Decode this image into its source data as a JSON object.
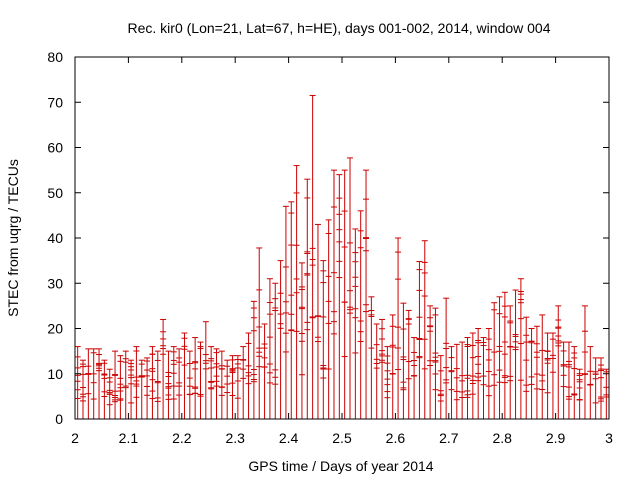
{
  "colors": {
    "series": "#cc0000",
    "axis": "#000000",
    "background": "#ffffff"
  },
  "chart_data": {
    "type": "errorbar",
    "title": "Rec. kir0 (Lon=21, Lat=67, h=HE), days 001-002, 2014, window 004",
    "xlabel": "GPS time / Days of year 2014",
    "ylabel": "STEC from uqrg / TECUs",
    "xlim": [
      2.0,
      3.0
    ],
    "ylim": [
      0,
      80
    ],
    "xticks": [
      2.0,
      2.1,
      2.2,
      2.3,
      2.4,
      2.5,
      2.6,
      2.7,
      2.8,
      2.9,
      3.0
    ],
    "xtick_labels": [
      "2",
      "2.1",
      "2.2",
      "2.3",
      "2.4",
      "2.5",
      "2.6",
      "2.7",
      "2.8",
      "2.9",
      "3"
    ],
    "yticks": [
      0,
      10,
      20,
      30,
      40,
      50,
      60,
      70,
      80
    ],
    "ytick_labels": [
      "0",
      "10",
      "20",
      "30",
      "40",
      "50",
      "60",
      "70",
      "80"
    ],
    "grid": false,
    "legend": "none",
    "series": [
      {
        "name": "STEC",
        "description": "Each vertical bar spans from 0 to the epoch's maximum STEC; horizontal ticks mark individual satellite STEC values.",
        "x": [
          2.005,
          2.015,
          2.025,
          2.035,
          2.045,
          2.055,
          2.065,
          2.075,
          2.085,
          2.095,
          2.105,
          2.115,
          2.125,
          2.135,
          2.145,
          2.155,
          2.165,
          2.175,
          2.185,
          2.195,
          2.205,
          2.215,
          2.225,
          2.235,
          2.245,
          2.255,
          2.265,
          2.275,
          2.285,
          2.295,
          2.305,
          2.315,
          2.325,
          2.335,
          2.345,
          2.355,
          2.365,
          2.375,
          2.385,
          2.395,
          2.405,
          2.415,
          2.425,
          2.435,
          2.445,
          2.455,
          2.465,
          2.475,
          2.485,
          2.495,
          2.505,
          2.515,
          2.525,
          2.535,
          2.545,
          2.555,
          2.565,
          2.575,
          2.585,
          2.595,
          2.605,
          2.615,
          2.625,
          2.635,
          2.645,
          2.655,
          2.665,
          2.675,
          2.685,
          2.695,
          2.705,
          2.715,
          2.725,
          2.735,
          2.745,
          2.755,
          2.765,
          2.775,
          2.785,
          2.795,
          2.805,
          2.815,
          2.825,
          2.835,
          2.845,
          2.855,
          2.865,
          2.875,
          2.885,
          2.895,
          2.905,
          2.915,
          2.925,
          2.935,
          2.945,
          2.955,
          2.965,
          2.975,
          2.985,
          2.995
        ],
        "max": [
          16,
          13,
          15.5,
          15.5,
          15.5,
          13,
          11,
          15,
          14,
          15,
          13,
          16,
          13,
          13.5,
          16,
          15,
          22,
          15,
          16,
          15.5,
          19,
          15,
          18,
          17,
          21.5,
          16,
          15.5,
          15,
          13,
          14,
          14,
          16,
          19,
          26,
          37.8,
          21,
          31,
          30,
          35,
          47,
          48,
          56,
          34.5,
          53,
          71.5,
          43,
          35,
          44,
          55,
          54,
          55,
          57.7,
          42,
          46,
          55,
          27,
          21,
          22,
          16,
          23,
          40,
          25.6,
          24,
          18,
          34.8,
          39.4,
          25,
          24.5,
          14,
          26.7,
          16,
          16.5,
          17,
          18,
          19,
          20,
          18,
          20,
          25.7,
          27,
          28,
          25,
          28.5,
          31,
          22.5,
          20,
          20.5,
          23,
          19,
          19,
          25,
          17,
          17,
          16,
          11,
          25,
          16,
          13.5,
          13.5,
          11
        ]
      }
    ]
  }
}
